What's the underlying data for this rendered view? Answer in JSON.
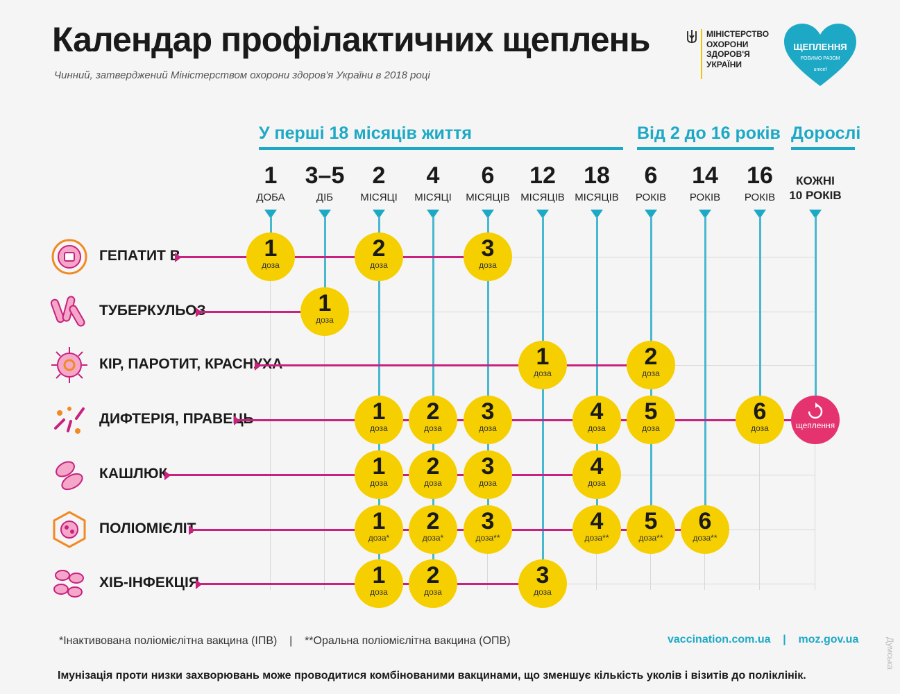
{
  "header": {
    "title": "Календар профілактичних щеплень",
    "subtitle": "Чинний, затверджений Міністерством охорони здоров'я України в 2018 році",
    "ministry": "МІНІСТЕРСТВО\nОХОРОНИ\nЗДОРОВ'Я\nУКРАЇНИ",
    "logo_text": "ЩЕПЛЕННЯ",
    "logo_subtext": "РОБИМО РАЗОМ",
    "logo_brand": "unicef"
  },
  "groups": [
    {
      "label": "У перші 18 місяців життя"
    },
    {
      "label": "Від 2 до 16 років"
    },
    {
      "label": "Дорослі"
    }
  ],
  "columns": [
    {
      "num": "1",
      "unit": "ДОБА"
    },
    {
      "num": "3–5",
      "unit": "ДІБ"
    },
    {
      "num": "2",
      "unit": "МІСЯЦІ"
    },
    {
      "num": "4",
      "unit": "МІСЯЦІ"
    },
    {
      "num": "6",
      "unit": "МІСЯЦІВ"
    },
    {
      "num": "12",
      "unit": "МІСЯЦІВ"
    },
    {
      "num": "18",
      "unit": "МІСЯЦІВ"
    },
    {
      "num": "6",
      "unit": "РОКІВ"
    },
    {
      "num": "14",
      "unit": "РОКІВ"
    },
    {
      "num": "16",
      "unit": "РОКІВ"
    },
    {
      "num": "",
      "unit": "КОЖНІ\n10 РОКІВ"
    }
  ],
  "dose_word": "доза",
  "revax_word": "щеплення",
  "rows": [
    {
      "label": "ГЕПАТИТ В",
      "icon": "hepatitis-icon",
      "doses": [
        {
          "col": 0,
          "n": "1"
        },
        {
          "col": 2,
          "n": "2"
        },
        {
          "col": 4,
          "n": "3"
        }
      ]
    },
    {
      "label": "ТУБЕРКУЛЬОЗ",
      "icon": "tuberculosis-icon",
      "doses": [
        {
          "col": 1,
          "n": "1"
        }
      ]
    },
    {
      "label": "КІР, ПАРОТИТ, КРАСНУХА",
      "icon": "measles-icon",
      "doses": [
        {
          "col": 5,
          "n": "1"
        },
        {
          "col": 7,
          "n": "2"
        }
      ]
    },
    {
      "label": "ДИФТЕРІЯ, ПРАВЕЦЬ",
      "icon": "diphtheria-icon",
      "doses": [
        {
          "col": 2,
          "n": "1"
        },
        {
          "col": 3,
          "n": "2"
        },
        {
          "col": 4,
          "n": "3"
        },
        {
          "col": 6,
          "n": "4"
        },
        {
          "col": 7,
          "n": "5"
        },
        {
          "col": 9,
          "n": "6"
        },
        {
          "col": 10,
          "revax": true
        }
      ]
    },
    {
      "label": "КАШЛЮК",
      "icon": "pertussis-icon",
      "doses": [
        {
          "col": 2,
          "n": "1"
        },
        {
          "col": 3,
          "n": "2"
        },
        {
          "col": 4,
          "n": "3"
        },
        {
          "col": 6,
          "n": "4"
        }
      ]
    },
    {
      "label": "ПОЛІОМІЄЛІТ",
      "icon": "polio-icon",
      "doses": [
        {
          "col": 2,
          "n": "1",
          "mark": "*"
        },
        {
          "col": 3,
          "n": "2",
          "mark": "*"
        },
        {
          "col": 4,
          "n": "3",
          "mark": "**"
        },
        {
          "col": 6,
          "n": "4",
          "mark": "**"
        },
        {
          "col": 7,
          "n": "5",
          "mark": "**"
        },
        {
          "col": 8,
          "n": "6",
          "mark": "**"
        }
      ]
    },
    {
      "label": "ХІБ-ІНФЕКЦІЯ",
      "icon": "hib-icon",
      "doses": [
        {
          "col": 2,
          "n": "1"
        },
        {
          "col": 3,
          "n": "2"
        },
        {
          "col": 5,
          "n": "3"
        }
      ]
    }
  ],
  "footer": {
    "footnote": "*Інактивована поліомієлітна вакцина (ІПВ)    |    **Оральна поліомієлітна вакцина (ОПВ)",
    "links": "vaccination.com.ua    |    moz.gov.ua",
    "note": "Імунізація проти низки захворювань може проводитися комбінованими вакцинами, що зменшує кількість уколів і візитів до поліклінік.",
    "watermark": "Думська"
  },
  "colors": {
    "accent": "#1da9c6",
    "line": "#c8217e",
    "dose": "#f6cf00",
    "revax": "#e4336f"
  }
}
